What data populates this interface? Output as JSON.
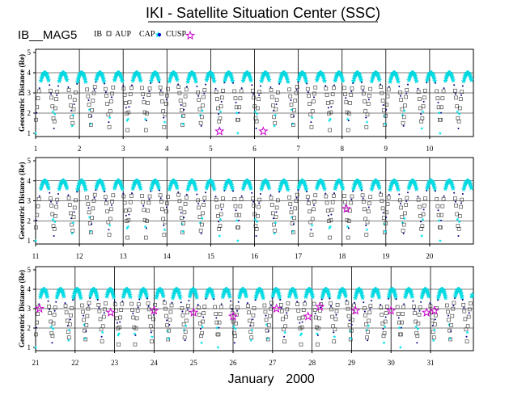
{
  "chart_data": {
    "type": "scatter",
    "title": "IKI - Satellite Situation Center (SSC)",
    "satellite": "IB__MAG5",
    "ylabel": "Geocentric Distance (Re)",
    "ylim": [
      1,
      5
    ],
    "yticks": [
      1,
      2,
      3,
      4,
      5
    ],
    "month": "January",
    "year": "2000",
    "legend": [
      {
        "label": "IB",
        "symbol": "none",
        "color": "#000000"
      },
      {
        "label": "AUP",
        "symbol": "square",
        "color": "#000000"
      },
      {
        "label": "CAP",
        "symbol": "star",
        "color": "#00e5ee"
      },
      {
        "label": "CUSP",
        "symbol": "star",
        "color": "#cc00cc"
      }
    ],
    "panels": [
      {
        "days": [
          "1",
          "2",
          "3",
          "4",
          "5",
          "6",
          "7",
          "8",
          "9",
          "10"
        ],
        "cusp_events": [
          {
            "day": 5.2,
            "r": 1.1
          },
          {
            "day": 6.2,
            "r": 1.1
          }
        ]
      },
      {
        "days": [
          "11",
          "12",
          "13",
          "14",
          "15",
          "16",
          "17",
          "18",
          "19",
          "20"
        ],
        "cusp_events": [
          {
            "day": 18.1,
            "r": 2.6
          }
        ]
      },
      {
        "days": [
          "21",
          "22",
          "23",
          "24",
          "25",
          "26",
          "27",
          "28",
          "29",
          "30",
          "31"
        ],
        "cusp_events": [
          {
            "day": 21.1,
            "r": 3.0
          },
          {
            "day": 22.9,
            "r": 2.8
          },
          {
            "day": 24.0,
            "r": 2.9
          },
          {
            "day": 25.0,
            "r": 2.8
          },
          {
            "day": 26.0,
            "r": 2.6
          },
          {
            "day": 27.1,
            "r": 3.0
          },
          {
            "day": 27.9,
            "r": 2.6
          },
          {
            "day": 28.2,
            "r": 3.1
          },
          {
            "day": 29.1,
            "r": 2.9
          },
          {
            "day": 30.0,
            "r": 2.9
          },
          {
            "day": 30.9,
            "r": 2.8
          },
          {
            "day": 31.1,
            "r": 2.9
          }
        ]
      }
    ],
    "series_description": {
      "orbit_period_days": 0.42,
      "apogee_re": 4.0,
      "perigee_re": 1.0
    }
  }
}
